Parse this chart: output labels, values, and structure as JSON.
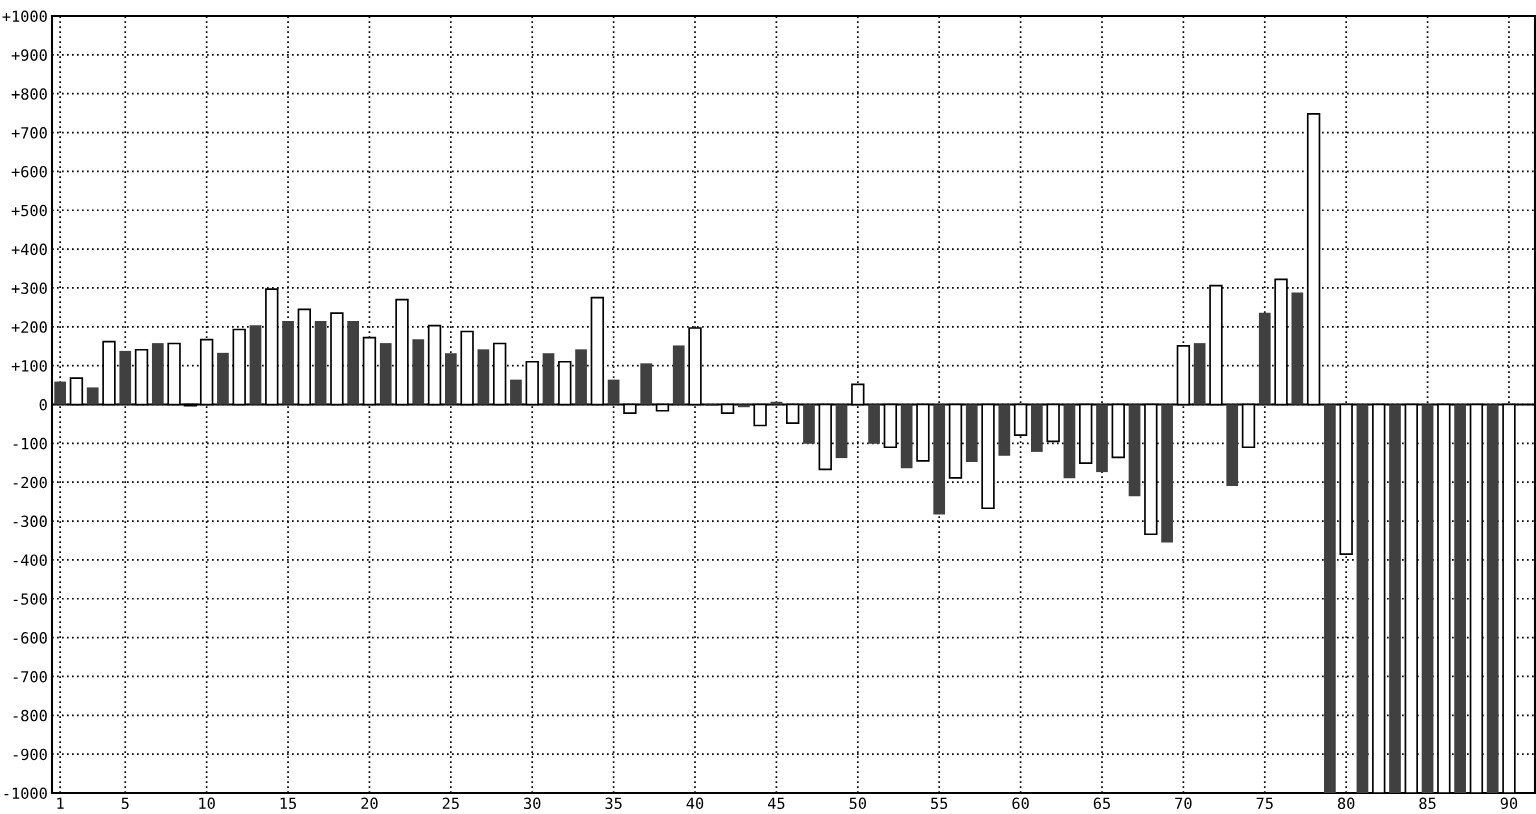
{
  "chart_data": {
    "type": "bar",
    "x": [
      1,
      2,
      3,
      4,
      5,
      6,
      7,
      8,
      9,
      10,
      11,
      12,
      13,
      14,
      15,
      16,
      17,
      18,
      19,
      20,
      21,
      22,
      23,
      24,
      25,
      26,
      27,
      28,
      29,
      30,
      31,
      32,
      33,
      34,
      35,
      36,
      37,
      38,
      39,
      40,
      41,
      42,
      43,
      44,
      45,
      46,
      47,
      48,
      49,
      50,
      51,
      52,
      53,
      54,
      55,
      56,
      57,
      58,
      59,
      60,
      61,
      62,
      63,
      64,
      65,
      66,
      67,
      68,
      69,
      70,
      71,
      72,
      73,
      74,
      75,
      76,
      77,
      78,
      79,
      80,
      81,
      82,
      83,
      84,
      85,
      86,
      87,
      88,
      89,
      90
    ],
    "values": [
      59,
      68,
      44,
      162,
      138,
      141,
      158,
      157,
      -3,
      167,
      133,
      193,
      204,
      297,
      215,
      245,
      215,
      235,
      215,
      172,
      158,
      270,
      168,
      203,
      132,
      188,
      142,
      157,
      64,
      110,
      132,
      110,
      142,
      275,
      64,
      -22,
      106,
      -16,
      152,
      197,
      -3,
      -22,
      -7,
      -54,
      7,
      -48,
      -101,
      -167,
      -138,
      52,
      -101,
      -110,
      -164,
      -145,
      -283,
      -189,
      -148,
      -267,
      -132,
      -79,
      -122,
      -95,
      -190,
      -151,
      -174,
      -136,
      -236,
      -334,
      -355,
      151,
      158,
      306,
      -210,
      -110,
      236,
      322,
      288,
      748,
      -1000,
      -385,
      -1000,
      -1000,
      -1000,
      -1000,
      -1000,
      -1000,
      -1000,
      -1000,
      -1000,
      -1000
    ],
    "colors": [
      "#404040",
      "#ffffff",
      "#404040",
      "#ffffff",
      "#404040",
      "#ffffff",
      "#404040",
      "#ffffff",
      "#ffffff",
      "#ffffff",
      "#404040",
      "#ffffff",
      "#404040",
      "#ffffff",
      "#404040",
      "#ffffff",
      "#404040",
      "#ffffff",
      "#404040",
      "#ffffff",
      "#404040",
      "#ffffff",
      "#404040",
      "#ffffff",
      "#404040",
      "#ffffff",
      "#404040",
      "#ffffff",
      "#404040",
      "#ffffff",
      "#404040",
      "#ffffff",
      "#404040",
      "#ffffff",
      "#404040",
      "#ffffff",
      "#404040",
      "#ffffff",
      "#404040",
      "#ffffff",
      "#404040",
      "#ffffff",
      "#404040",
      "#ffffff",
      "#404040",
      "#ffffff",
      "#404040",
      "#ffffff",
      "#404040",
      "#ffffff",
      "#404040",
      "#ffffff",
      "#404040",
      "#ffffff",
      "#404040",
      "#ffffff",
      "#404040",
      "#ffffff",
      "#404040",
      "#ffffff",
      "#404040",
      "#ffffff",
      "#404040",
      "#ffffff",
      "#404040",
      "#ffffff",
      "#404040",
      "#ffffff",
      "#404040",
      "#ffffff",
      "#404040",
      "#ffffff",
      "#404040",
      "#ffffff",
      "#404040",
      "#ffffff",
      "#404040",
      "#ffffff",
      "#404040",
      "#ffffff",
      "#404040",
      "#ffffff",
      "#404040",
      "#ffffff",
      "#404040",
      "#ffffff",
      "#404040",
      "#ffffff",
      "#404040",
      "#ffffff"
    ],
    "xlim": [
      0.5,
      91.6
    ],
    "xticks": [
      1,
      5,
      10,
      15,
      20,
      25,
      30,
      35,
      40,
      45,
      50,
      55,
      60,
      65,
      70,
      75,
      80,
      85,
      90
    ],
    "ylim": [
      -1000,
      1000
    ],
    "yticks": [
      {
        "value": 1000,
        "label": "+1000"
      },
      {
        "value": 900,
        "label": "+900"
      },
      {
        "value": 800,
        "label": "+800"
      },
      {
        "value": 700,
        "label": "+700"
      },
      {
        "value": 600,
        "label": "+600"
      },
      {
        "value": 500,
        "label": "+500"
      },
      {
        "value": 400,
        "label": "+400"
      },
      {
        "value": 300,
        "label": "+300"
      },
      {
        "value": 200,
        "label": "+200"
      },
      {
        "value": 100,
        "label": "+100"
      },
      0,
      {
        "value": -100,
        "label": "-100"
      },
      {
        "value": -200,
        "label": "-200"
      },
      {
        "value": -300,
        "label": "-300"
      },
      {
        "value": -400,
        "label": "-400"
      },
      {
        "value": -500,
        "label": "-500"
      },
      {
        "value": -600,
        "label": "-600"
      },
      {
        "value": -700,
        "label": "-700"
      },
      {
        "value": -800,
        "label": "-800"
      },
      {
        "value": -900,
        "label": "-900"
      },
      {
        "value": -1000,
        "label": "-1000"
      }
    ],
    "grid": true
  }
}
